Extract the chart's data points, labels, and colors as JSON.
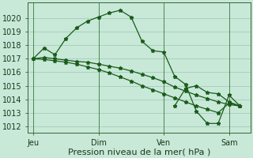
{
  "xlabel": "Pression niveau de la mer( hPa )",
  "bg_color": "#c8e8d8",
  "plot_bg_color": "#c8e8d8",
  "grid_color": "#aad0c0",
  "line_color": "#1a5c1a",
  "ylim": [
    1011.5,
    1021.2
  ],
  "yticks": [
    1012,
    1013,
    1014,
    1015,
    1016,
    1017,
    1018,
    1019,
    1020
  ],
  "xtick_labels": [
    "Jeu",
    "Dim",
    "Ven",
    "Sam"
  ],
  "xtick_positions": [
    0,
    24,
    48,
    72
  ],
  "xlim": [
    -2,
    80
  ],
  "vlines": [
    0,
    24,
    48,
    72
  ],
  "series1_x": [
    0,
    4,
    8,
    12,
    16,
    20,
    24,
    28,
    32,
    36,
    40,
    44,
    48,
    52,
    56,
    60,
    64,
    68,
    72,
    76
  ],
  "series1_y": [
    1017.0,
    1017.8,
    1017.3,
    1018.5,
    1019.3,
    1019.8,
    1020.1,
    1020.4,
    1020.6,
    1020.1,
    1018.3,
    1017.6,
    1017.5,
    1015.7,
    1015.1,
    1013.1,
    1012.2,
    1012.2,
    1014.3,
    1013.5
  ],
  "series2_x": [
    0,
    4,
    8,
    12,
    16,
    20,
    24,
    28,
    32,
    36,
    40,
    44,
    48,
    52,
    56,
    60,
    64,
    68,
    72,
    76
  ],
  "series2_y": [
    1017.0,
    1017.1,
    1017.0,
    1016.9,
    1016.8,
    1016.75,
    1016.6,
    1016.45,
    1016.3,
    1016.1,
    1015.85,
    1015.6,
    1015.3,
    1014.9,
    1014.6,
    1014.3,
    1014.05,
    1013.8,
    1013.6,
    1013.5
  ],
  "series3_x": [
    0,
    4,
    8,
    12,
    16,
    20,
    24,
    28,
    32,
    36,
    40,
    44,
    48,
    52,
    56,
    60,
    64,
    68,
    72,
    76
  ],
  "series3_y": [
    1017.0,
    1016.95,
    1016.85,
    1016.75,
    1016.6,
    1016.4,
    1016.2,
    1015.95,
    1015.65,
    1015.35,
    1015.0,
    1014.7,
    1014.4,
    1014.1,
    1013.8,
    1013.5,
    1013.25,
    1013.0,
    1013.7,
    1013.5
  ],
  "series4_x": [
    52,
    56,
    60,
    64,
    68,
    72,
    76
  ],
  "series4_y": [
    1013.5,
    1014.8,
    1015.0,
    1014.5,
    1014.4,
    1013.8,
    1013.5
  ],
  "marker": "*",
  "markersize": 3.5,
  "linewidth": 0.9,
  "xlabel_fontsize": 8,
  "tick_fontsize": 7
}
